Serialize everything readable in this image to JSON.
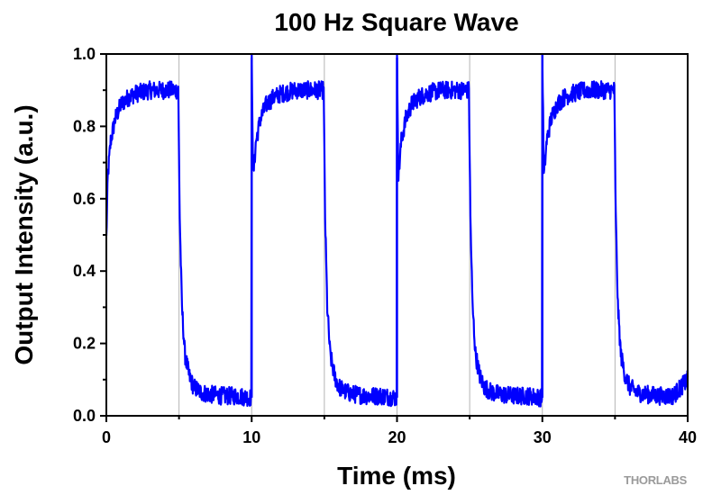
{
  "chart_data": {
    "type": "line",
    "title": "100 Hz Square Wave",
    "xlabel": "Time (ms)",
    "ylabel": "Output Intensity (a.u.)",
    "xlim": [
      0,
      40
    ],
    "ylim": [
      0,
      1.0
    ],
    "xticks": [
      "0",
      "10",
      "20",
      "30",
      "40"
    ],
    "yticks": [
      "0.0",
      "0.2",
      "0.4",
      "0.6",
      "0.8",
      "1.0"
    ],
    "grid": "vertical, every 5 ms",
    "legend": "none",
    "series": [
      {
        "color": "#0000ff",
        "x": [
          0,
          0.1,
          0.3,
          0.6,
          1.0,
          1.5,
          2.0,
          3.0,
          4.0,
          4.95,
          5.05,
          5.2,
          5.4,
          5.7,
          6.0,
          6.5,
          7.0,
          8.0,
          9.0,
          9.98,
          10.0,
          10.1,
          10.3,
          10.6,
          11.0,
          11.5,
          12.0,
          13.0,
          14.0,
          14.95,
          15.05,
          15.2,
          15.4,
          15.7,
          16.0,
          16.5,
          17.0,
          18.0,
          19.0,
          19.98,
          20.0,
          20.1,
          20.3,
          20.6,
          21.0,
          21.5,
          22.0,
          23.0,
          24.0,
          24.95,
          25.05,
          25.2,
          25.4,
          25.7,
          26.0,
          26.5,
          27.0,
          28.0,
          29.0,
          29.98,
          30.0,
          30.1,
          30.3,
          30.6,
          31.0,
          31.5,
          32.0,
          33.0,
          34.0,
          34.95,
          35.05,
          35.2,
          35.4,
          35.7,
          36.0,
          36.5,
          37.0,
          38.0,
          39.0,
          40.0
        ],
        "y": [
          0.49,
          0.66,
          0.76,
          0.82,
          0.86,
          0.88,
          0.89,
          0.9,
          0.9,
          0.9,
          0.55,
          0.3,
          0.17,
          0.11,
          0.08,
          0.065,
          0.06,
          0.055,
          0.055,
          0.05,
          0.99,
          0.66,
          0.76,
          0.82,
          0.86,
          0.88,
          0.89,
          0.9,
          0.9,
          0.9,
          0.55,
          0.3,
          0.17,
          0.11,
          0.08,
          0.065,
          0.06,
          0.055,
          0.055,
          0.05,
          0.99,
          0.66,
          0.76,
          0.82,
          0.86,
          0.88,
          0.89,
          0.9,
          0.9,
          0.9,
          0.55,
          0.3,
          0.17,
          0.11,
          0.08,
          0.065,
          0.06,
          0.055,
          0.055,
          0.05,
          1.0,
          0.66,
          0.76,
          0.82,
          0.86,
          0.88,
          0.89,
          0.9,
          0.9,
          0.9,
          0.55,
          0.3,
          0.17,
          0.11,
          0.08,
          0.065,
          0.06,
          0.055,
          0.055,
          0.1
        ],
        "noise_amplitude": 0.025
      }
    ]
  },
  "logo": {
    "text": "THORLABS"
  }
}
